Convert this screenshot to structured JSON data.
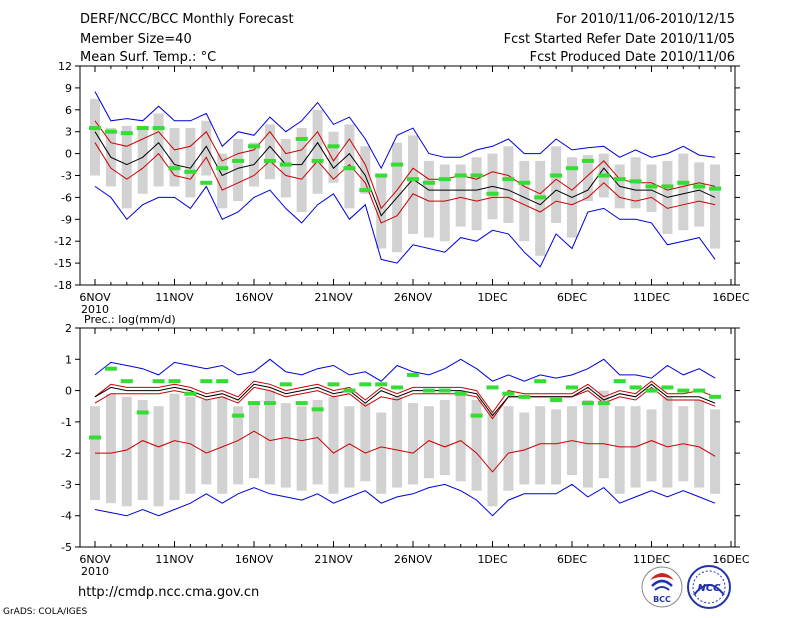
{
  "header": {
    "left": [
      "DERF/NCC/BCC Monthly Forecast",
      "Member Size=40",
      "Mean Surf. Temp.: °C"
    ],
    "right": [
      "For 2010/11/06-2010/12/15",
      "Fcst Started Refer Date 2010/11/05",
      "Fcst Produced Date 2010/11/06"
    ]
  },
  "footer": {
    "url": "http://cmdp.ncc.cma.gov.cn",
    "credit": "GrADS: COLA/IGES",
    "logo_bcc": "BCC",
    "logo_ncc": "NCC"
  },
  "colors": {
    "range": "#0000dd",
    "quartile": "#cc0000",
    "median": "#000000",
    "obs": "#33dd33",
    "box": "#d2d2d2",
    "axis": "#000000",
    "logo_red": "#cc2222",
    "logo_blue": "#2233aa"
  },
  "chart_data": [
    {
      "type": "line",
      "title": "Mean Surf. Temp.: °C",
      "ylim": [
        -18,
        12
      ],
      "yticks": [
        -18,
        -15,
        -12,
        -9,
        -6,
        -3,
        0,
        3,
        6,
        9,
        12
      ],
      "xlim": [
        0,
        40
      ],
      "xtick_pos": [
        0,
        5,
        10,
        15,
        20,
        25,
        30,
        35,
        40
      ],
      "xtick_labels": [
        "6NOV",
        "11NOV",
        "16NOV",
        "21NOV",
        "26NOV",
        "1DEC",
        "6DEC",
        "11DEC",
        "16DEC"
      ],
      "xsub_label": "2010",
      "x": [
        0,
        1,
        2,
        3,
        4,
        5,
        6,
        7,
        8,
        9,
        10,
        11,
        12,
        13,
        14,
        15,
        16,
        17,
        18,
        19,
        20,
        21,
        22,
        23,
        24,
        25,
        26,
        27,
        28,
        29,
        30,
        31,
        32,
        33,
        34,
        35,
        36,
        37,
        38,
        39
      ],
      "series": [
        {
          "name": "max",
          "values": [
            8.5,
            4.5,
            4.8,
            4.5,
            6.5,
            4.5,
            4.5,
            5.5,
            1,
            3,
            2.5,
            5,
            3,
            4.5,
            7,
            4,
            5,
            2,
            -2,
            2.5,
            3.5,
            0,
            -0.5,
            -0.5,
            0.5,
            1,
            2,
            0,
            0,
            2,
            0.5,
            0.8,
            1,
            -0.5,
            0.5,
            -0.5,
            0,
            1,
            -0.2,
            -0.5
          ]
        },
        {
          "name": "q75",
          "values": [
            4.5,
            1.5,
            1,
            2,
            3,
            0.5,
            1,
            3,
            -1,
            0,
            0.5,
            3,
            0,
            0.5,
            3,
            -1,
            2,
            -1.5,
            -7.5,
            -5,
            -2,
            -3.5,
            -3.5,
            -3,
            -3.5,
            -2.5,
            -3,
            -4.5,
            -5.5,
            -3.5,
            -5,
            -3,
            -1,
            -3.5,
            -4,
            -4,
            -5,
            -4.5,
            -4,
            -4.5
          ]
        },
        {
          "name": "median",
          "values": [
            3,
            -0.5,
            -1.5,
            -0.5,
            1.5,
            -1.5,
            -2,
            1,
            -3,
            -2,
            -1.5,
            1,
            -1.5,
            -1.5,
            1.5,
            -2,
            0,
            -3,
            -8.5,
            -6,
            -3.5,
            -5,
            -5,
            -5,
            -5,
            -4.5,
            -5,
            -6,
            -7,
            -5,
            -6,
            -5,
            -2,
            -4.5,
            -5,
            -5,
            -6,
            -5.5,
            -5,
            -6
          ]
        },
        {
          "name": "q25",
          "values": [
            1.5,
            -2,
            -3.5,
            -2,
            0,
            -3,
            -3.5,
            -0.5,
            -5,
            -4,
            -3,
            -1,
            -3,
            -3.5,
            -1,
            -3.5,
            -1.5,
            -4,
            -9.5,
            -8.5,
            -5.5,
            -6.5,
            -6.5,
            -6,
            -6.5,
            -6,
            -6,
            -7,
            -8,
            -6.5,
            -7,
            -6,
            -4,
            -6,
            -6.5,
            -6,
            -7.5,
            -7,
            -6.5,
            -7
          ]
        },
        {
          "name": "min",
          "values": [
            -4.5,
            -6,
            -9,
            -7,
            -6,
            -6,
            -7.5,
            -4.5,
            -9,
            -8,
            -6,
            -5,
            -7.5,
            -9.5,
            -7,
            -5.5,
            -9,
            -7,
            -14.5,
            -15,
            -12.5,
            -13,
            -13.5,
            -11.5,
            -12,
            -10.5,
            -11,
            -13.5,
            -15.5,
            -11,
            -13,
            -8,
            -7.5,
            -9,
            -9,
            -9.5,
            -12.5,
            -12,
            -11.5,
            -14.5
          ]
        },
        {
          "name": "obs",
          "values": [
            3.5,
            3,
            2.8,
            3.5,
            3.5,
            -2,
            -2.5,
            -4,
            -2,
            -1,
            1,
            -1,
            -1.5,
            2,
            -1,
            1,
            -2,
            -5,
            -3,
            -1.5,
            -3.5,
            -4,
            -3.5,
            -3,
            -3,
            -5.5,
            -3.5,
            -4,
            -6,
            -3,
            -2,
            -1,
            -3,
            -3.5,
            -3.8,
            -4.5,
            -4.5,
            -4,
            -4.5,
            -4.8
          ]
        }
      ]
    },
    {
      "type": "line",
      "title": "Prec.: log(mm/d)",
      "ylim": [
        -5,
        2
      ],
      "yticks": [
        -5,
        -4,
        -3,
        -2,
        -1,
        0,
        1,
        2
      ],
      "xlim": [
        0,
        40
      ],
      "xtick_pos": [
        0,
        5,
        10,
        15,
        20,
        25,
        30,
        35,
        40
      ],
      "xtick_labels": [
        "6NOV",
        "11NOV",
        "16NOV",
        "21NOV",
        "26NOV",
        "1DEC",
        "6DEC",
        "11DEC",
        "16DEC"
      ],
      "xsub_label": "2010",
      "x": [
        0,
        1,
        2,
        3,
        4,
        5,
        6,
        7,
        8,
        9,
        10,
        11,
        12,
        13,
        14,
        15,
        16,
        17,
        18,
        19,
        20,
        21,
        22,
        23,
        24,
        25,
        26,
        27,
        28,
        29,
        30,
        31,
        32,
        33,
        34,
        35,
        36,
        37,
        38,
        39
      ],
      "series": [
        {
          "name": "max",
          "values": [
            0.5,
            0.9,
            0.8,
            0.7,
            0.5,
            0.9,
            0.8,
            0.7,
            0.8,
            0.5,
            0.6,
            1,
            0.6,
            0.5,
            0.7,
            0.8,
            0.5,
            0.6,
            0.3,
            0.8,
            0.6,
            0.5,
            0.7,
            1,
            0.7,
            0.3,
            0.5,
            0.3,
            0.5,
            0.4,
            0.5,
            0.7,
            1,
            0.5,
            0.5,
            0.4,
            0.8,
            0.5,
            0.7,
            0.4
          ]
        },
        {
          "name": "q75",
          "values": [
            -0.2,
            0.2,
            0.1,
            0.1,
            0.1,
            0.2,
            0.1,
            -0.1,
            0,
            -0.2,
            0.3,
            0.2,
            0,
            0.1,
            0.2,
            0,
            0.1,
            -0.3,
            0.1,
            -0.1,
            0.1,
            0.1,
            0.1,
            0.1,
            0,
            -0.7,
            0,
            -0.1,
            -0.1,
            -0.1,
            -0.1,
            0.2,
            -0.2,
            0,
            -0.1,
            0.3,
            -0.1,
            -0.1,
            0,
            -0.2
          ]
        },
        {
          "name": "median",
          "values": [
            -0.2,
            0.1,
            0,
            0,
            0,
            0.1,
            0,
            -0.2,
            -0.1,
            -0.3,
            0.2,
            0.1,
            -0.1,
            0,
            0.1,
            -0.1,
            0,
            -0.4,
            0,
            -0.2,
            0,
            0,
            0,
            0,
            -0.1,
            -0.8,
            -0.2,
            -0.2,
            -0.2,
            -0.2,
            -0.2,
            0.1,
            -0.3,
            -0.1,
            -0.2,
            0.2,
            -0.2,
            -0.2,
            -0.2,
            -0.4
          ]
        },
        {
          "name": "q25",
          "values": [
            -0.4,
            -0.1,
            -0.1,
            -0.1,
            -0.1,
            0,
            -0.1,
            -0.3,
            -0.2,
            -0.4,
            0.1,
            0,
            -0.2,
            -0.1,
            0,
            -0.2,
            -0.1,
            -0.5,
            -0.2,
            -0.3,
            -0.1,
            -0.1,
            -0.1,
            -0.1,
            -0.2,
            -0.9,
            -0.2,
            -0.2,
            -0.2,
            -0.2,
            -0.2,
            0,
            -0.4,
            -0.2,
            -0.3,
            0.1,
            -0.3,
            -0.3,
            -0.3,
            -0.5
          ]
        },
        {
          "name": "q10",
          "values": [
            -2,
            -2,
            -1.9,
            -1.6,
            -1.8,
            -1.6,
            -1.7,
            -2,
            -1.8,
            -1.6,
            -1.3,
            -1.6,
            -1.5,
            -1.6,
            -1.5,
            -2,
            -1.7,
            -2,
            -1.8,
            -1.9,
            -2,
            -1.6,
            -1.8,
            -1.6,
            -2,
            -2.6,
            -2,
            -1.9,
            -1.7,
            -1.7,
            -1.6,
            -1.7,
            -1.7,
            -1.8,
            -1.8,
            -1.6,
            -1.8,
            -1.7,
            -1.8,
            -2.1
          ]
        },
        {
          "name": "min",
          "values": [
            -3.8,
            -3.9,
            -4,
            -3.8,
            -4,
            -3.8,
            -3.6,
            -3.3,
            -3.6,
            -3.3,
            -3.1,
            -3.3,
            -3.4,
            -3.5,
            -3.3,
            -3.6,
            -3.4,
            -3.2,
            -3.6,
            -3.4,
            -3.3,
            -3.1,
            -3,
            -3.2,
            -3.5,
            -4,
            -3.5,
            -3.3,
            -3.3,
            -3.3,
            -3,
            -3.4,
            -3.1,
            -3.6,
            -3.4,
            -3.2,
            -3.4,
            -3.2,
            -3.4,
            -3.6
          ]
        },
        {
          "name": "obs",
          "values": [
            -1.5,
            0.7,
            0.3,
            -0.7,
            0.3,
            0.3,
            -0.1,
            0.3,
            0.3,
            -0.8,
            -0.4,
            -0.4,
            0.2,
            -0.4,
            -0.6,
            0.2,
            0,
            0.2,
            0.2,
            0.1,
            0.5,
            0,
            0,
            -0.1,
            -0.8,
            0.1,
            -0.1,
            -0.2,
            0.3,
            -0.3,
            0.1,
            -0.4,
            -0.4,
            0.3,
            0.1,
            0,
            0.1,
            0,
            0,
            -0.2
          ]
        }
      ]
    }
  ]
}
